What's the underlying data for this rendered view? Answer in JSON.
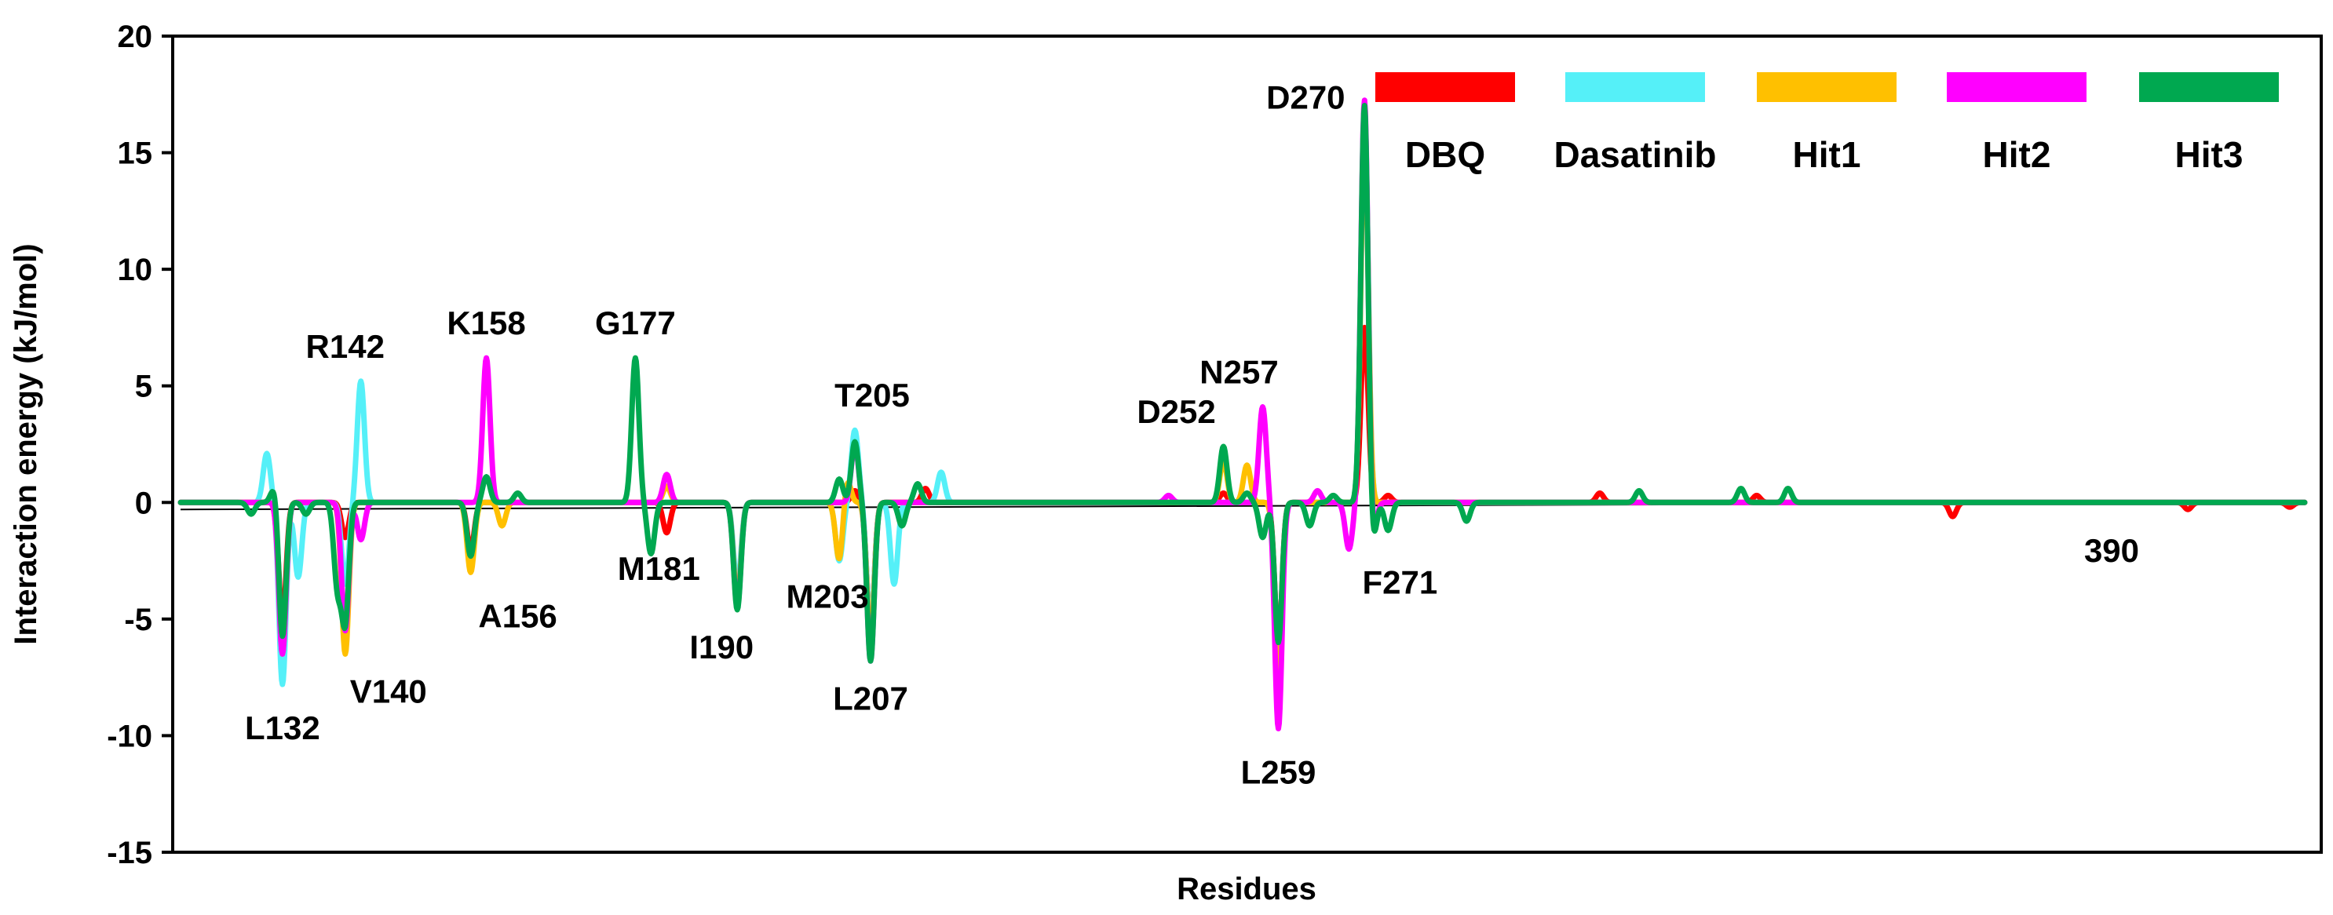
{
  "chart_data": {
    "type": "line",
    "ylabel": "Interaction energy (kJ/mol)",
    "xlabel": "Residues",
    "ylim": [
      -15,
      20
    ],
    "yticks": [
      20,
      15,
      10,
      5,
      0,
      -5,
      -10,
      -15
    ],
    "xlim": [
      118,
      392
    ],
    "x_end_label": "390",
    "legend_position": "top-right",
    "series": [
      {
        "name": "DBQ",
        "color": "#ff0000",
        "spikes": [
          [
            132,
            -5.0
          ],
          [
            140,
            -1.5
          ],
          [
            156,
            -2.0
          ],
          [
            181,
            -1.3
          ],
          [
            190,
            -4.0
          ],
          [
            205,
            0.5
          ],
          [
            207,
            -5.5
          ],
          [
            214,
            0.6
          ],
          [
            252,
            0.4
          ],
          [
            259,
            -6.0
          ],
          [
            270,
            7.5
          ],
          [
            273,
            0.3
          ],
          [
            300,
            0.4
          ],
          [
            320,
            0.3
          ],
          [
            345,
            -0.6
          ],
          [
            375,
            -0.3
          ],
          [
            388,
            -0.2
          ]
        ]
      },
      {
        "name": "Dasatinib",
        "color": "#55f0f8",
        "spikes": [
          [
            130,
            2.1
          ],
          [
            132,
            -7.8
          ],
          [
            134,
            -3.2
          ],
          [
            140,
            -3.5
          ],
          [
            142,
            5.2
          ],
          [
            156,
            -2.5
          ],
          [
            190,
            -3.6
          ],
          [
            203,
            -2.5
          ],
          [
            205,
            3.1
          ],
          [
            207,
            -5.5
          ],
          [
            210,
            -3.5
          ],
          [
            216,
            1.3
          ],
          [
            259,
            -7.0
          ],
          [
            270,
            16.5
          ]
        ]
      },
      {
        "name": "Hit1",
        "color": "#ffc000",
        "spikes": [
          [
            132,
            -6.5
          ],
          [
            140,
            -6.5
          ],
          [
            156,
            -3.0
          ],
          [
            160,
            -1.0
          ],
          [
            181,
            0.7
          ],
          [
            190,
            -4.2
          ],
          [
            203,
            -2.5
          ],
          [
            204,
            1.0
          ],
          [
            207,
            -6.0
          ],
          [
            252,
            1.8
          ],
          [
            255,
            1.6
          ],
          [
            259,
            -7.5
          ],
          [
            270,
            16.0
          ]
        ]
      },
      {
        "name": "Hit2",
        "color": "#ff00ff",
        "spikes": [
          [
            132,
            -6.5
          ],
          [
            140,
            -5.5
          ],
          [
            142,
            -1.6
          ],
          [
            158,
            6.2
          ],
          [
            181,
            1.2
          ],
          [
            190,
            -4.5
          ],
          [
            205,
            2.5
          ],
          [
            207,
            -6.8
          ],
          [
            245,
            0.3
          ],
          [
            257,
            4.1
          ],
          [
            259,
            -9.7
          ],
          [
            264,
            0.5
          ],
          [
            268,
            -2.0
          ],
          [
            270,
            17.4
          ],
          [
            271,
            -1.6
          ]
        ]
      },
      {
        "name": "Hit3",
        "color": "#00a850",
        "spikes": [
          [
            128,
            -0.5
          ],
          [
            131,
            0.7
          ],
          [
            132,
            -5.8
          ],
          [
            135,
            -0.5
          ],
          [
            139,
            -3.5
          ],
          [
            140,
            -5.0
          ],
          [
            156,
            -2.3
          ],
          [
            158,
            1.1
          ],
          [
            162,
            0.4
          ],
          [
            177,
            6.2
          ],
          [
            179,
            -2.2
          ],
          [
            190,
            -4.6
          ],
          [
            203,
            1.0
          ],
          [
            205,
            2.6
          ],
          [
            207,
            -6.8
          ],
          [
            211,
            -1.0
          ],
          [
            213,
            0.8
          ],
          [
            252,
            2.4
          ],
          [
            255,
            0.4
          ],
          [
            257,
            -1.5
          ],
          [
            259,
            -6.0
          ],
          [
            263,
            -1.0
          ],
          [
            266,
            0.3
          ],
          [
            270,
            17.2
          ],
          [
            271,
            -1.9
          ],
          [
            273,
            -1.2
          ],
          [
            283,
            -0.8
          ],
          [
            305,
            0.5
          ],
          [
            318,
            0.6
          ],
          [
            324,
            0.6
          ]
        ]
      }
    ],
    "annotations": [
      {
        "label": "L132",
        "x": 132,
        "y": -7.8
      },
      {
        "label": "V140",
        "x": 140,
        "y": -6.5
      },
      {
        "label": "R142",
        "x": 142,
        "y": 5.2
      },
      {
        "label": "A156",
        "x": 156,
        "y": -3.0
      },
      {
        "label": "K158",
        "x": 158,
        "y": 6.2
      },
      {
        "label": "G177",
        "x": 177,
        "y": 6.2
      },
      {
        "label": "M181",
        "x": 181,
        "y": -1.3
      },
      {
        "label": "I190",
        "x": 190,
        "y": -4.6
      },
      {
        "label": "M203",
        "x": 203,
        "y": -2.5
      },
      {
        "label": "T205",
        "x": 205,
        "y": 3.1
      },
      {
        "label": "L207",
        "x": 207,
        "y": -6.8
      },
      {
        "label": "D252",
        "x": 252,
        "y": 2.4
      },
      {
        "label": "N257",
        "x": 257,
        "y": 4.1
      },
      {
        "label": "L259",
        "x": 259,
        "y": -9.7
      },
      {
        "label": "D270",
        "x": 270,
        "y": 17.4
      },
      {
        "label": "F271",
        "x": 271,
        "y": -1.9
      }
    ]
  }
}
